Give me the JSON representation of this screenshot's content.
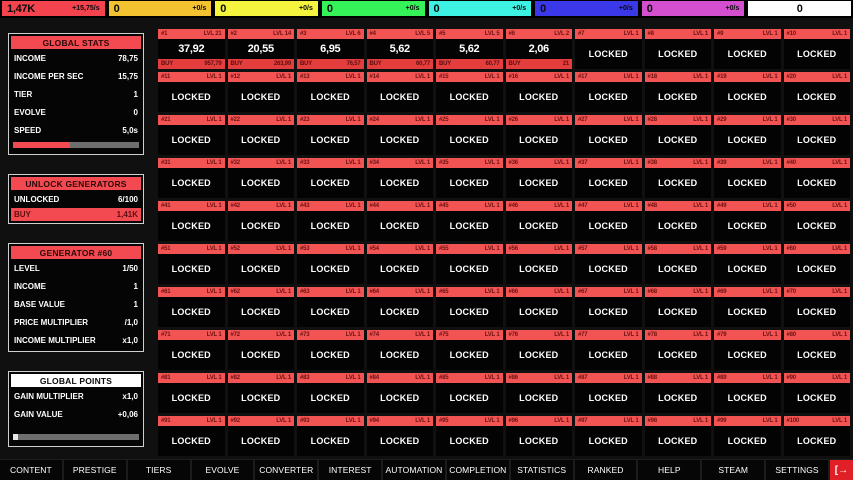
{
  "colors": {
    "accent_red": "#f24a50",
    "card_header_red": "#f25353",
    "card_buy_red": "#e33d3d",
    "exit_red": "#e02026",
    "currency_colors": [
      "#f2434e",
      "#f2c230",
      "#f4f43e",
      "#35f258",
      "#3df2e2",
      "#3b38ea",
      "#d44fd0",
      "#ffffff"
    ]
  },
  "topbar": {
    "currencies": [
      {
        "value": "1,47K",
        "rate": "+15,75/s"
      },
      {
        "value": "0",
        "rate": "+0/s"
      },
      {
        "value": "0",
        "rate": "+0/s"
      },
      {
        "value": "0",
        "rate": "+0/s"
      },
      {
        "value": "0",
        "rate": "+0/s"
      },
      {
        "value": "0",
        "rate": "+0/s"
      },
      {
        "value": "0",
        "rate": "+0/s"
      },
      {
        "value": "0",
        "rate": ""
      }
    ]
  },
  "sidebar": {
    "panels": [
      {
        "key": "global-stats",
        "title": "GLOBAL STATS",
        "title_style": "red",
        "rows": [
          {
            "label": "INCOME",
            "value": "78,75"
          },
          {
            "label": "INCOME PER SEC",
            "value": "15,75"
          },
          {
            "label": "TIER",
            "value": "1"
          },
          {
            "label": "EVOLVE",
            "value": "0"
          },
          {
            "label": "SPEED",
            "value": "5,0s"
          }
        ],
        "progress": {
          "pct": 45,
          "style": "red"
        }
      },
      {
        "key": "unlock-generators",
        "title": "UNLOCK GENERATORS",
        "title_style": "red",
        "rows": [
          {
            "label": "UNLOCKED",
            "value": "6/100"
          }
        ],
        "buy": {
          "label": "BUY",
          "value": "1,41K"
        }
      },
      {
        "key": "generator-info",
        "title": "GENERATOR #60",
        "title_style": "red",
        "rows": [
          {
            "label": "LEVEL",
            "value": "1/50"
          },
          {
            "label": "INCOME",
            "value": "1"
          },
          {
            "label": "BASE VALUE",
            "value": "1"
          },
          {
            "label": "PRICE MULTIPLIER",
            "value": "/1,0"
          },
          {
            "label": "INCOME MULTIPLIER",
            "value": "x1,0"
          }
        ]
      },
      {
        "key": "global-points",
        "title": "GLOBAL POINTS",
        "title_style": "white",
        "rows": [
          {
            "label": "GAIN MULTIPLIER",
            "value": "x1,0"
          },
          {
            "label": "GAIN VALUE",
            "value": "+0,06"
          }
        ],
        "progress": {
          "pct": 4,
          "style": "white"
        }
      }
    ]
  },
  "grid": {
    "total": 100,
    "id_prefix": "#",
    "level_prefix": "LVL",
    "locked_label": "LOCKED",
    "buy_label": "BUY",
    "locked_level": 1,
    "unlocked": [
      {
        "n": 1,
        "level": 21,
        "value": "37,92",
        "price": "957,79"
      },
      {
        "n": 2,
        "level": 14,
        "value": "20,55",
        "price": "263,99"
      },
      {
        "n": 3,
        "level": 6,
        "value": "6,95",
        "price": "76,57"
      },
      {
        "n": 4,
        "level": 5,
        "value": "5,62",
        "price": "60,77"
      },
      {
        "n": 5,
        "level": 5,
        "value": "5,62",
        "price": "60,77"
      },
      {
        "n": 6,
        "level": 2,
        "value": "2,06",
        "price": "21"
      }
    ]
  },
  "bottombar": {
    "buttons": [
      "CONTENT",
      "PRESTIGE",
      "TIERS",
      "EVOLVE",
      "CONVERTER",
      "INTEREST",
      "AUTOMATION",
      "COMPLETION",
      "STATISTICS",
      "RANKED",
      "HELP",
      "STEAM",
      "SETTINGS"
    ],
    "exit_glyph": "[→"
  }
}
